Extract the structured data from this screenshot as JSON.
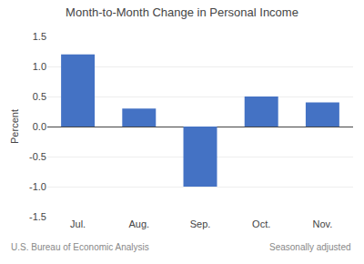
{
  "chart_data": {
    "type": "bar",
    "title": "Month-to-Month Change in Personal Income",
    "categories": [
      "Jul.",
      "Aug.",
      "Sep.",
      "Oct.",
      "Nov."
    ],
    "values": [
      1.2,
      0.3,
      -1.0,
      0.5,
      0.4
    ],
    "color": "#4472C4",
    "ylabel": "Percent",
    "ylim": [
      -1.5,
      1.5
    ],
    "yticks": [
      -1.5,
      {
        "value": -1.0,
        "label": "-1.0"
      },
      -0.5,
      {
        "value": 0.0,
        "label": "0.0"
      },
      0.5,
      {
        "value": 1.0,
        "label": "1.0"
      },
      1.5
    ],
    "grid": true,
    "annotations": [
      "U.S. Bureau of Economic Analysis",
      "Seasonally adjusted"
    ]
  }
}
